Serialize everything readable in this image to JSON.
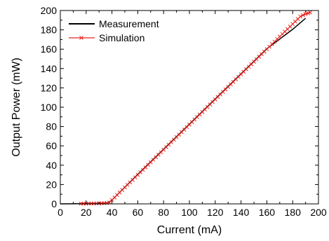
{
  "chart_data": {
    "type": "line",
    "title": "",
    "xlabel": "Current (mA)",
    "ylabel": "Output Power (mW)",
    "xlim": [
      0,
      200
    ],
    "ylim": [
      0,
      200
    ],
    "xticks": [
      0,
      20,
      40,
      60,
      80,
      100,
      120,
      140,
      160,
      180,
      200
    ],
    "yticks": [
      0,
      20,
      40,
      60,
      80,
      100,
      120,
      140,
      160,
      180,
      200
    ],
    "grid": false,
    "legend_position": "top-left",
    "series": [
      {
        "name": "Measurement",
        "color": "#000000",
        "marker": "none",
        "x": [
          0,
          10,
          20,
          30,
          36,
          38,
          40,
          60,
          80,
          100,
          120,
          140,
          160,
          180,
          190
        ],
        "y": [
          0,
          0.1,
          0.3,
          0.6,
          1.0,
          2.0,
          4.0,
          30.5,
          56.5,
          82.5,
          108.5,
          134.5,
          160.5,
          180.5,
          192.0
        ]
      },
      {
        "name": "Simulation",
        "color": "#e8231e",
        "marker": "x",
        "x": [
          16,
          18,
          20,
          22,
          24,
          26,
          28,
          30,
          32,
          34,
          36,
          38,
          40,
          42,
          44,
          46,
          48,
          50,
          52,
          54,
          56,
          58,
          60,
          62,
          64,
          66,
          68,
          70,
          72,
          74,
          76,
          78,
          80,
          82,
          84,
          86,
          88,
          90,
          92,
          94,
          96,
          98,
          100,
          102,
          104,
          106,
          108,
          110,
          112,
          114,
          116,
          118,
          120,
          122,
          124,
          126,
          128,
          130,
          132,
          134,
          136,
          138,
          140,
          142,
          144,
          146,
          148,
          150,
          152,
          154,
          156,
          158,
          160,
          162,
          164,
          166,
          168,
          170,
          172,
          174,
          176,
          178,
          180,
          182,
          184,
          186,
          188,
          190,
          192,
          193.5
        ],
        "y": [
          0.3,
          0.3,
          0.3,
          0.4,
          0.4,
          0.4,
          0.5,
          0.5,
          0.6,
          0.7,
          0.9,
          1.4,
          4.0,
          6.6,
          9.2,
          11.8,
          14.4,
          17.0,
          19.6,
          22.2,
          24.8,
          27.4,
          30.0,
          32.6,
          35.2,
          37.8,
          40.4,
          43.0,
          45.6,
          48.2,
          50.8,
          53.4,
          56.0,
          58.6,
          61.2,
          63.8,
          66.4,
          69.0,
          71.6,
          74.2,
          76.8,
          79.4,
          82.0,
          84.6,
          87.2,
          89.8,
          92.4,
          95.0,
          97.6,
          100.2,
          102.8,
          105.4,
          108.0,
          110.6,
          113.2,
          115.8,
          118.4,
          121.0,
          123.6,
          126.2,
          128.8,
          131.4,
          134.0,
          136.6,
          139.2,
          141.8,
          144.4,
          147.0,
          149.6,
          152.2,
          154.8,
          157.4,
          160.0,
          162.6,
          165.2,
          167.8,
          170.4,
          173.0,
          175.6,
          178.2,
          180.8,
          183.4,
          186.0,
          188.6,
          191.2,
          193.8,
          195.2,
          196.4,
          197.2,
          198.0
        ]
      }
    ]
  }
}
